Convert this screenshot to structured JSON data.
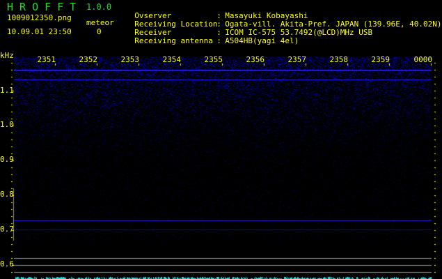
{
  "header": {
    "app_title": "H R O F F T",
    "version": "1.0.0",
    "filename": "1009012350.png",
    "datetime": "10.09.01 23:50",
    "meteor_label": "meteor",
    "meteor_count": "0"
  },
  "info": [
    {
      "key": "Ovserver",
      "sep": ":",
      "value": "Masayuki Kobayashi"
    },
    {
      "key": "Receiving Location",
      "sep": ":",
      "value": "Ogata-vill. Akita-Pref. JAPAN (139.96E, 40.02N)"
    },
    {
      "key": "Receiver",
      "sep": ":",
      "value": "ICOM IC-575 53.7492(@LCD)MHz USB"
    },
    {
      "key": "Receiving antenna",
      "sep": ":",
      "value": "A504HB(yagi 4el)"
    }
  ],
  "spectrogram": {
    "y_unit": "kHz",
    "y_ticks": [
      "1.1",
      "1.0",
      "0.9",
      "0.8",
      "0.7",
      "0.6"
    ],
    "x_ticks": [
      "2351",
      "2352",
      "2353",
      "2354",
      "2355",
      "2356",
      "2357",
      "2358",
      "2359",
      "0000"
    ],
    "colors": {
      "text": "#ffff00",
      "title": "#22dd22",
      "signal": "#2222ff",
      "reference_lines": "#909090",
      "meteor_bar": "#22dddd",
      "background": "#000000"
    }
  }
}
